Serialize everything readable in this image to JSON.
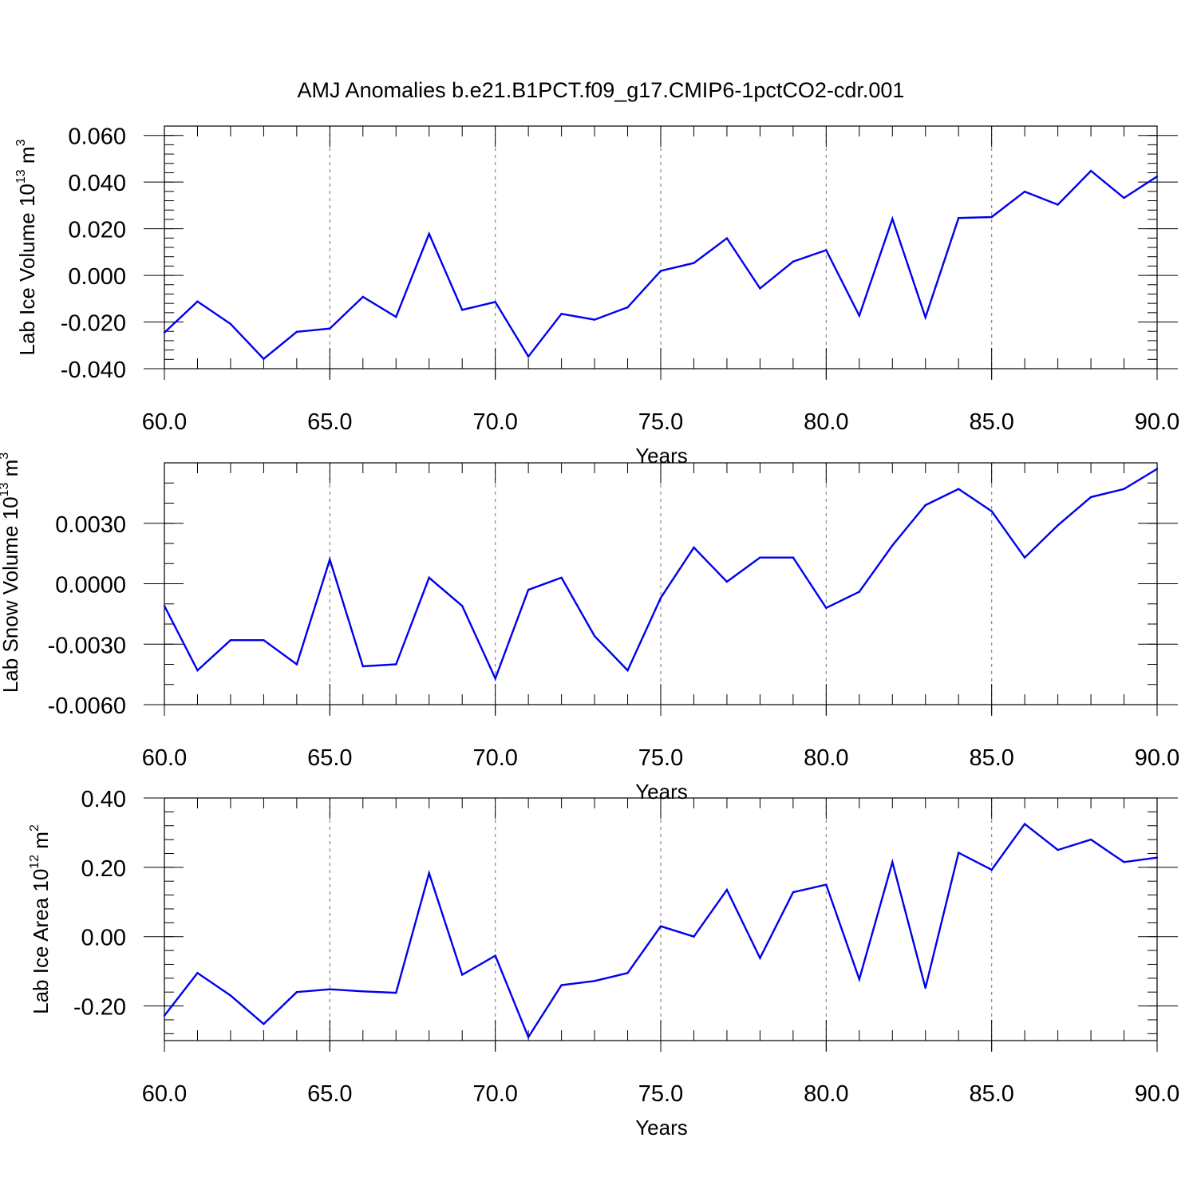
{
  "figure": {
    "title": "AMJ Anomalies b.e21.B1PCT.f09_g17.CMIP6-1pctCO2-cdr.001"
  },
  "chart_data": [
    {
      "type": "line",
      "title": "",
      "xlabel": "Years",
      "ylabel": "Lab Ice Volume 10",
      "ylabel_sup": "13",
      "ylabel_unit": " m",
      "ylabel_unit_sup": "3",
      "xlim": [
        60,
        90
      ],
      "ylim": [
        -0.04,
        0.064
      ],
      "xticks": [
        60,
        65,
        70,
        75,
        80,
        85,
        90
      ],
      "xtick_labels": [
        "60.0",
        "65.0",
        "70.0",
        "75.0",
        "80.0",
        "85.0",
        "90.0"
      ],
      "yticks": [
        -0.04,
        -0.02,
        0.0,
        0.02,
        0.04,
        0.06
      ],
      "ytick_labels": [
        "-0.040",
        "-0.020",
        "0.000",
        "0.020",
        "0.040",
        "0.060"
      ],
      "y_minor_step": 0.004,
      "vertical_grid": "dashed at 65, 70, 75, 80, 85",
      "color": "#0000ee",
      "x": [
        60,
        61,
        62,
        63,
        64,
        65,
        66,
        67,
        68,
        69,
        70,
        71,
        72,
        73,
        74,
        75,
        76,
        77,
        78,
        79,
        80,
        81,
        82,
        83,
        84,
        85,
        86,
        87,
        88,
        89,
        90
      ],
      "values": [
        -0.0245,
        -0.0112,
        -0.0208,
        -0.0358,
        -0.0242,
        -0.0228,
        -0.0092,
        -0.0178,
        0.0178,
        -0.0148,
        -0.0114,
        -0.0348,
        -0.0165,
        -0.019,
        -0.0137,
        0.0019,
        0.0053,
        0.0159,
        -0.0056,
        0.0059,
        0.0108,
        -0.0173,
        0.0242,
        -0.018,
        0.0246,
        0.025,
        0.0359,
        0.0303,
        0.0448,
        0.0332,
        0.0424
      ]
    },
    {
      "type": "line",
      "title": "",
      "xlabel": "Years",
      "ylabel": "Lab Snow Volume 10",
      "ylabel_sup": "13",
      "ylabel_unit": " m",
      "ylabel_unit_sup": "3",
      "xlim": [
        60,
        90
      ],
      "ylim": [
        -0.006,
        0.006
      ],
      "xticks": [
        60,
        65,
        70,
        75,
        80,
        85,
        90
      ],
      "xtick_labels": [
        "60.0",
        "65.0",
        "70.0",
        "75.0",
        "80.0",
        "85.0",
        "90.0"
      ],
      "yticks": [
        -0.006,
        -0.003,
        0.0,
        0.003
      ],
      "ytick_labels": [
        "-0.0060",
        "-0.0030",
        "0.0000",
        "0.0030"
      ],
      "y_minor_step": 0.001,
      "vertical_grid": "dashed at 65, 70, 75, 80, 85",
      "color": "#0000ee",
      "x": [
        60,
        61,
        62,
        63,
        64,
        65,
        66,
        67,
        68,
        69,
        70,
        71,
        72,
        73,
        74,
        75,
        76,
        77,
        78,
        79,
        80,
        81,
        82,
        83,
        84,
        85,
        86,
        87,
        88,
        89,
        90
      ],
      "values": [
        -0.0011,
        -0.0043,
        -0.0028,
        -0.0028,
        -0.004,
        0.0012,
        -0.0041,
        -0.004,
        0.0003,
        -0.0011,
        -0.0047,
        -0.0003,
        0.0003,
        -0.0026,
        -0.0043,
        -0.0007,
        0.0018,
        0.0001,
        0.0013,
        0.0013,
        -0.0012,
        -0.0004,
        0.0019,
        0.0039,
        0.0047,
        0.0036,
        0.0013,
        0.0029,
        0.0043,
        0.0047,
        0.0057
      ]
    },
    {
      "type": "line",
      "title": "",
      "xlabel": "Years",
      "ylabel": "Lab Ice Area 10",
      "ylabel_sup": "12",
      "ylabel_unit": " m",
      "ylabel_unit_sup": "2",
      "xlim": [
        60,
        90
      ],
      "ylim": [
        -0.3,
        0.4
      ],
      "xticks": [
        60,
        65,
        70,
        75,
        80,
        85,
        90
      ],
      "xtick_labels": [
        "60.0",
        "65.0",
        "70.0",
        "75.0",
        "80.0",
        "85.0",
        "90.0"
      ],
      "yticks": [
        -0.2,
        0.0,
        0.2,
        0.4
      ],
      "ytick_labels": [
        "-0.20",
        "0.00",
        "0.20",
        "0.40"
      ],
      "y_minor_step": 0.04,
      "vertical_grid": "dashed at 65, 70, 75, 80, 85",
      "color": "#0000ee",
      "x": [
        60,
        61,
        62,
        63,
        64,
        65,
        66,
        67,
        68,
        69,
        70,
        71,
        72,
        73,
        74,
        75,
        76,
        77,
        78,
        79,
        80,
        81,
        82,
        83,
        84,
        85,
        86,
        87,
        88,
        89,
        90
      ],
      "values": [
        -0.228,
        -0.105,
        -0.17,
        -0.252,
        -0.16,
        -0.152,
        -0.158,
        -0.162,
        0.183,
        -0.11,
        -0.055,
        -0.29,
        -0.14,
        -0.128,
        -0.105,
        0.03,
        0.0,
        0.135,
        -0.062,
        0.128,
        0.15,
        -0.123,
        0.215,
        -0.148,
        0.242,
        0.193,
        0.325,
        0.25,
        0.28,
        0.215,
        0.228
      ]
    }
  ]
}
